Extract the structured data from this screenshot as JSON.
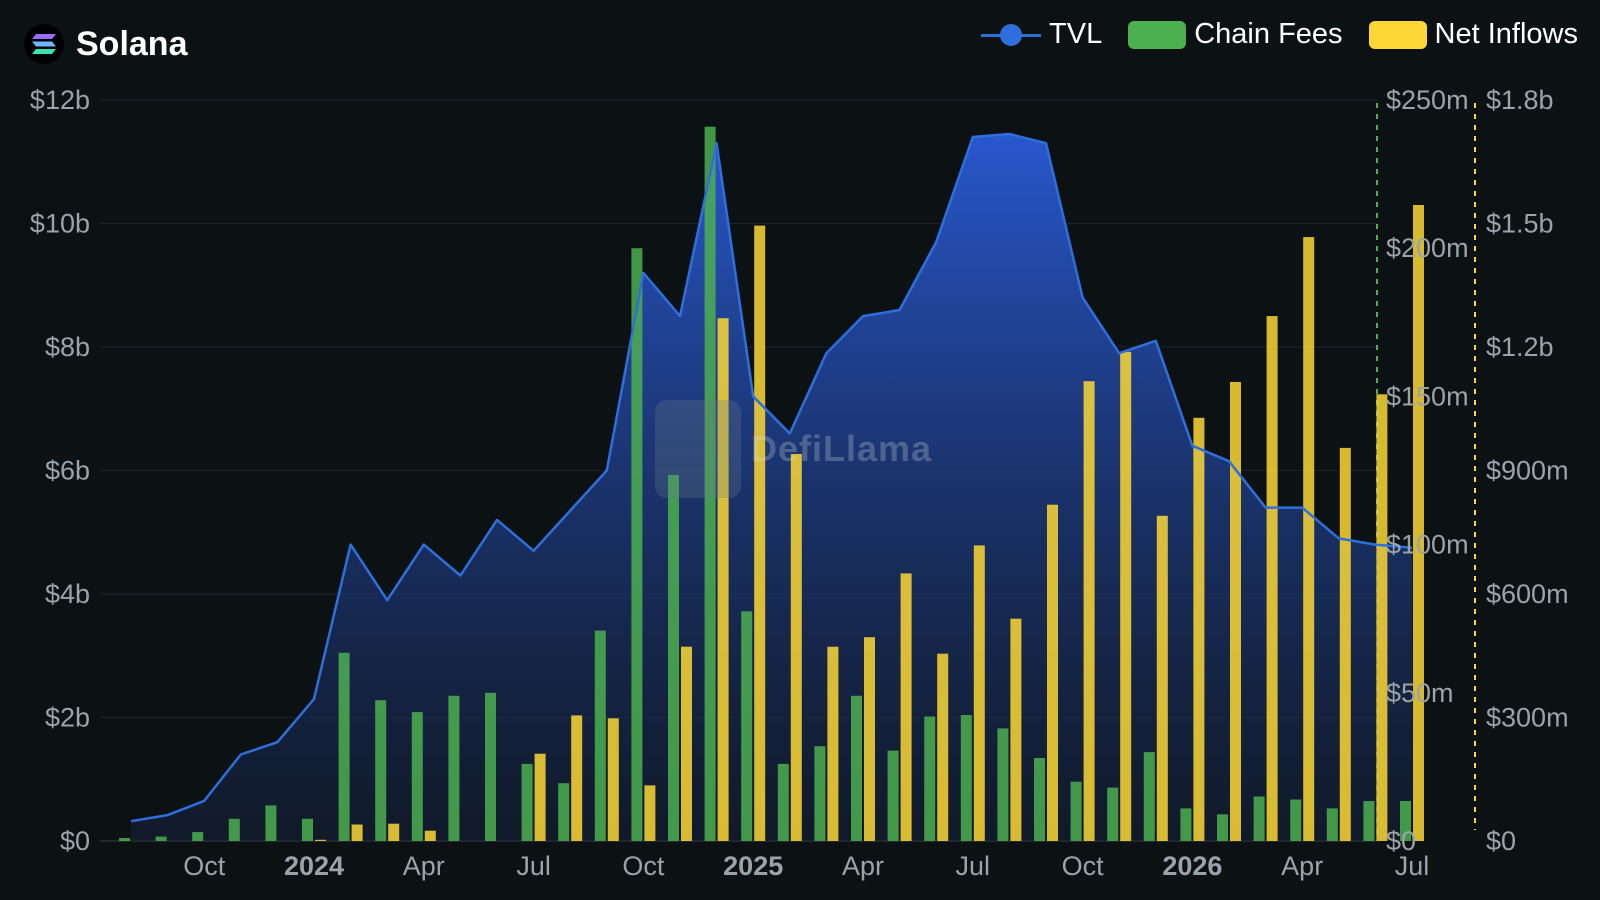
{
  "header": {
    "title": "Solana",
    "logo_icon": "solana-icon"
  },
  "legend": [
    {
      "label": "TVL",
      "color": "#2f6fdc",
      "kind": "line"
    },
    {
      "label": "Chain Fees",
      "color": "#4caf50",
      "kind": "bar"
    },
    {
      "label": "Net Inflows",
      "color": "#fdd835",
      "kind": "bar"
    }
  ],
  "watermark": "DefiLlama",
  "chart_data": {
    "type": "bar",
    "x": [
      "2023-08",
      "2023-09",
      "2023-10",
      "2023-11",
      "2023-12",
      "2024-01",
      "2024-02",
      "2024-03",
      "2024-04",
      "2024-05",
      "2024-06",
      "2024-07",
      "2024-08",
      "2024-09",
      "2024-10",
      "2024-11",
      "2024-12",
      "2025-01",
      "2025-02",
      "2025-03",
      "2025-04",
      "2025-05",
      "2025-06",
      "2025-07",
      "2025-08",
      "2025-09",
      "2025-10",
      "2025-11",
      "2025-12",
      "2026-01",
      "2026-02",
      "2026-03",
      "2026-04",
      "2026-05",
      "2026-06",
      "2026-07"
    ],
    "x_tick_labels": [
      {
        "x": "2023-10",
        "label": "Oct",
        "bold": false
      },
      {
        "x": "2024-01",
        "label": "2024",
        "bold": true
      },
      {
        "x": "2024-04",
        "label": "Apr",
        "bold": false
      },
      {
        "x": "2024-07",
        "label": "Jul",
        "bold": false
      },
      {
        "x": "2024-10",
        "label": "Oct",
        "bold": false
      },
      {
        "x": "2025-01",
        "label": "2025",
        "bold": true
      },
      {
        "x": "2025-04",
        "label": "Apr",
        "bold": false
      },
      {
        "x": "2025-07",
        "label": "Jul",
        "bold": false
      },
      {
        "x": "2025-10",
        "label": "Oct",
        "bold": false
      },
      {
        "x": "2026-01",
        "label": "2026",
        "bold": true
      },
      {
        "x": "2026-04",
        "label": "Apr",
        "bold": false
      },
      {
        "x": "2026-07",
        "label": "Jul",
        "bold": false
      }
    ],
    "axes": {
      "tvl": {
        "ticks": [
          "$0",
          "$2b",
          "$4b",
          "$6b",
          "$8b",
          "$10b",
          "$12b"
        ],
        "range": [
          0,
          12
        ]
      },
      "fees": {
        "ticks": [
          "$0",
          "$50m",
          "$100m",
          "$150m",
          "$200m",
          "$250m"
        ],
        "range": [
          0,
          250
        ]
      },
      "inflows": {
        "ticks": [
          "$0",
          "$300m",
          "$600m",
          "$900m",
          "$1.2b",
          "$1.5b",
          "$1.8b"
        ],
        "range": [
          0,
          1800
        ]
      }
    },
    "series": [
      {
        "name": "TVL",
        "type": "area",
        "color": "#2f6fdc",
        "axis": "tvl",
        "unit": "$b",
        "values": [
          0.32,
          0.42,
          0.65,
          1.4,
          1.6,
          2.3,
          4.8,
          3.9,
          4.8,
          4.3,
          5.2,
          4.7,
          5.35,
          6,
          9.2,
          8.5,
          11.3,
          7.2,
          6.6,
          7.9,
          8.5,
          8.6,
          9.7,
          11.4,
          11.45,
          11.3,
          8.8,
          7.9,
          8.1,
          6.4,
          6.15,
          5.4,
          5.4,
          4.9,
          4.8,
          4.75
        ]
      },
      {
        "name": "Chain Fees",
        "type": "bar",
        "color": "#4caf50",
        "axis": "fees",
        "unit": "$m",
        "values": [
          1,
          1.5,
          3,
          7.5,
          12,
          7.5,
          63.5,
          47.5,
          43.5,
          49,
          50,
          26,
          19.5,
          71,
          200,
          123.5,
          241,
          77.5,
          26,
          32,
          49,
          30.5,
          42,
          42.5,
          38,
          28,
          20,
          18,
          30,
          11,
          9,
          15,
          14,
          11,
          13.5,
          13.5
        ]
      },
      {
        "name": "Net Inflows",
        "type": "bar",
        "color": "#fdd835",
        "axis": "inflows",
        "unit": "$m",
        "values": [
          0,
          0,
          0,
          0,
          0,
          3,
          40,
          42,
          25,
          0,
          0,
          212,
          305,
          298,
          135,
          472,
          1270,
          1495,
          940,
          472,
          495,
          650,
          455,
          718,
          540,
          817,
          1117,
          1188,
          790,
          1028,
          1115,
          1275,
          1467,
          955,
          1085,
          1545
        ]
      }
    ]
  }
}
